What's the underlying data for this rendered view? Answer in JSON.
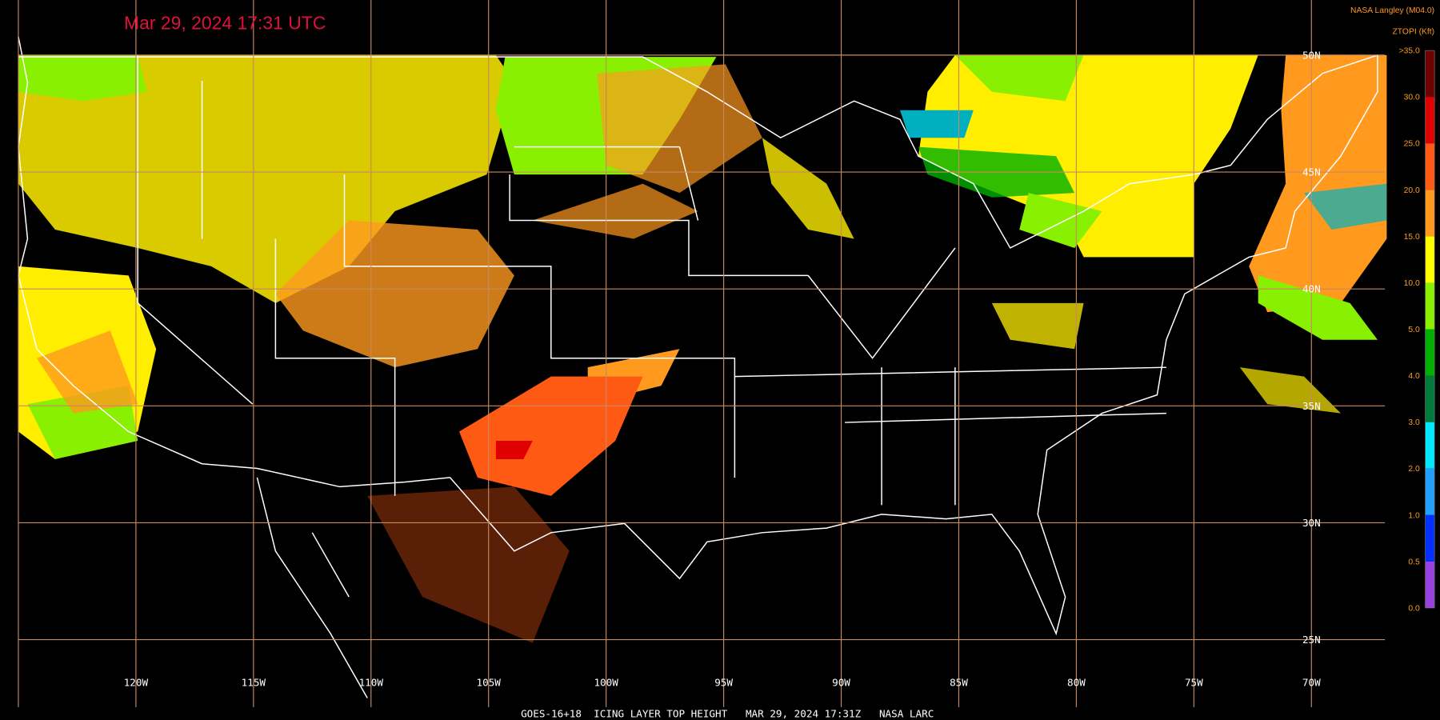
{
  "header": {
    "timestamp": "Mar 29, 2024 17:31 UTC",
    "source": "NASA Langley (M04.0)"
  },
  "legend": {
    "title": "ZTOPI (Kft)",
    "labels": [
      ">35.0",
      "30.0",
      "25.0",
      "20.0",
      "15.0",
      "10.0",
      "5.0",
      "4.0",
      "3.0",
      "2.0",
      "1.0",
      "0.5",
      "0.0"
    ],
    "colors": [
      "#6e0000",
      "#e00000",
      "#ff5a14",
      "#ff9a1e",
      "#ffff00",
      "#88f000",
      "#00b000",
      "#007a3a",
      "#00e8ff",
      "#20a0ff",
      "#0030ff",
      "#9a40e0"
    ]
  },
  "grid": {
    "longitudes": [
      "120W",
      "115W",
      "110W",
      "105W",
      "100W",
      "95W",
      "90W",
      "85W",
      "80W",
      "75W",
      "70W"
    ],
    "latitudes": [
      "50N",
      "45N",
      "40N",
      "35N",
      "30N",
      "25N"
    ]
  },
  "footer": "GOES-16+18  ICING LAYER TOP HEIGHT   MAR 29, 2024 17:31Z   NASA LARC"
}
